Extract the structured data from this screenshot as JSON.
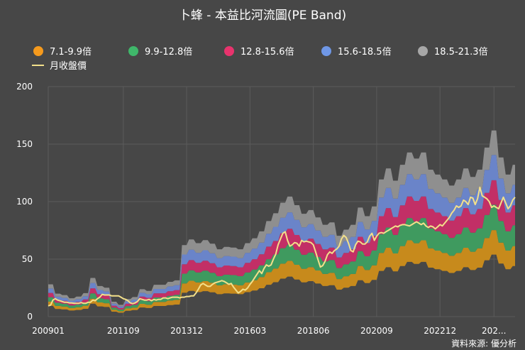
{
  "chart_data": {
    "type": "area",
    "title": "卜蜂 - 本益比河流圖(PE Band)",
    "credit": "資料來源: 優分析",
    "xlabel": "",
    "ylabel": "",
    "ylim": [
      0,
      200
    ],
    "yticks": [
      0,
      50,
      100,
      150,
      200
    ],
    "x_tick_labels": [
      "200901",
      "201109",
      "201312",
      "201603",
      "201806",
      "202009",
      "202212",
      "202..."
    ],
    "x_tick_index": [
      0,
      32,
      59,
      86,
      113,
      140,
      167,
      190
    ],
    "grid": true,
    "legend_position": "top",
    "bands": [
      {
        "name": "7.1-9.9倍",
        "color": "#f59a1d",
        "fill": "#c78a1c"
      },
      {
        "name": "9.9-12.8倍",
        "color": "#3fb76a",
        "fill": "#3f9a5f"
      },
      {
        "name": "12.8-15.6倍",
        "color": "#e8336d",
        "fill": "#c22f66"
      },
      {
        "name": "15.6-18.5倍",
        "color": "#6f97e6",
        "fill": "#6a84c9"
      },
      {
        "name": "18.5-21.3倍",
        "color": "#a7a7a7",
        "fill": "#8f8f8f"
      }
    ],
    "line_series": {
      "name": "月收盤價",
      "color": "#f3e08a"
    },
    "pe_multiples": [
      7.1,
      9.9,
      12.8,
      15.6,
      18.5,
      21.3
    ],
    "eps_quarterly": [
      1.32,
      0.94,
      0.88,
      0.75,
      0.82,
      0.96,
      1.58,
      1.25,
      1.18,
      0.61,
      0.48,
      0.72,
      0.8,
      1.12,
      1.05,
      1.3,
      1.3,
      1.42,
      1.48,
      2.92,
      3.15,
      3.0,
      3.12,
      2.98,
      2.75,
      2.85,
      2.82,
      2.75,
      3.0,
      3.2,
      3.48,
      3.9,
      4.22,
      4.65,
      4.9,
      4.55,
      4.2,
      4.35,
      4.05,
      3.75,
      3.85,
      3.3,
      3.55,
      3.75,
      4.45,
      4.1,
      4.5,
      5.6,
      6.05,
      5.55,
      6.2,
      6.7,
      6.45,
      6.7,
      6.0,
      5.8,
      5.6,
      5.35,
      5.6,
      6.05,
      5.7,
      6.0,
      6.9,
      7.6,
      6.5,
      5.8,
      6.2,
      5.9,
      6.3
    ],
    "monthly_close": [
      9.4,
      10.0,
      14.4,
      15.6,
      14.4,
      13.8,
      13.1,
      12.5,
      12.5,
      11.9,
      11.9,
      11.6,
      11.6,
      11.6,
      12.2,
      11.6,
      11.6,
      12.5,
      12.5,
      14.4,
      13.8,
      15.6,
      16.9,
      19.4,
      18.8,
      18.8,
      18.8,
      18.1,
      18.1,
      18.1,
      18.1,
      16.9,
      15.6,
      15.0,
      13.8,
      11.9,
      11.3,
      11.9,
      13.1,
      15.6,
      15.0,
      14.4,
      14.4,
      15.0,
      13.8,
      15.0,
      14.4,
      15.0,
      15.0,
      16.3,
      16.3,
      15.6,
      16.3,
      16.9,
      16.9,
      16.9,
      16.3,
      16.9,
      16.9,
      17.5,
      17.5,
      18.1,
      18.1,
      20.6,
      23.8,
      27.5,
      28.8,
      27.5,
      26.3,
      26.3,
      28.1,
      29.4,
      30.0,
      30.6,
      31.3,
      30.6,
      29.4,
      28.1,
      28.8,
      25.6,
      23.1,
      20.6,
      21.9,
      23.8,
      23.1,
      25.0,
      28.1,
      30.6,
      33.8,
      36.9,
      40.0,
      37.5,
      41.9,
      45.0,
      43.8,
      45.0,
      50.0,
      54.4,
      62.5,
      67.5,
      72.5,
      73.8,
      66.3,
      61.3,
      62.5,
      64.4,
      63.8,
      61.3,
      66.3,
      65.0,
      65.6,
      65.0,
      64.4,
      62.5,
      56.3,
      49.4,
      43.1,
      44.4,
      48.1,
      53.8,
      56.3,
      55.0,
      57.5,
      58.8,
      61.3,
      67.5,
      70.6,
      68.8,
      63.8,
      57.5,
      56.3,
      62.5,
      65.6,
      65.0,
      63.1,
      63.1,
      65.0,
      70.0,
      72.5,
      66.3,
      70.0,
      72.5,
      73.1,
      72.5,
      73.8,
      75.0,
      76.3,
      77.5,
      78.8,
      78.1,
      79.4,
      80.0,
      80.0,
      79.4,
      78.8,
      80.0,
      81.3,
      82.5,
      81.3,
      80.0,
      81.3,
      78.8,
      77.5,
      78.8,
      78.1,
      76.3,
      78.1,
      80.0,
      78.8,
      81.3,
      83.8,
      86.3,
      90.0,
      92.5,
      96.3,
      95.0,
      96.3,
      101.3,
      100.0,
      97.5,
      103.8,
      103.1,
      97.5,
      102.5,
      112.5,
      105.0,
      103.8,
      102.5,
      100.0,
      95.0,
      96.3,
      95.0,
      93.8,
      98.8,
      103.8,
      98.8,
      93.8,
      96.3,
      101.3,
      103.8
    ]
  }
}
